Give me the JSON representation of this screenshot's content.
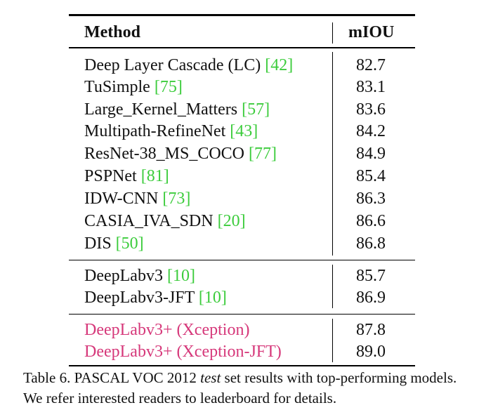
{
  "table": {
    "header": {
      "method": "Method",
      "miou": "mIOU"
    },
    "group1": [
      {
        "method": "Deep Layer Cascade (LC)",
        "ref": "42",
        "miou": "82.7"
      },
      {
        "method": "TuSimple",
        "ref": "75",
        "miou": "83.1"
      },
      {
        "method": "Large_Kernel_Matters",
        "ref": "57",
        "miou": "83.6"
      },
      {
        "method": "Multipath-RefineNet",
        "ref": "43",
        "miou": "84.2"
      },
      {
        "method": "ResNet-38_MS_COCO",
        "ref": "77",
        "miou": "84.9"
      },
      {
        "method": "PSPNet",
        "ref": "81",
        "miou": "85.4"
      },
      {
        "method": "IDW-CNN",
        "ref": "73",
        "miou": "86.3"
      },
      {
        "method": "CASIA_IVA_SDN",
        "ref": "20",
        "miou": "86.6"
      },
      {
        "method": "DIS",
        "ref": "50",
        "miou": "86.8"
      }
    ],
    "group2": [
      {
        "method": "DeepLabv3",
        "ref": "10",
        "miou": "85.7"
      },
      {
        "method": "DeepLabv3-JFT",
        "ref": "10",
        "miou": "86.9"
      }
    ],
    "group3": [
      {
        "method": "DeepLabv3+ (Xception)",
        "miou": "87.8"
      },
      {
        "method": "DeepLabv3+ (Xception-JFT)",
        "miou": "89.0"
      }
    ],
    "colors": {
      "ref": "#3ccc3c",
      "ours": "#d6387a"
    }
  },
  "caption": {
    "prefix": "Table 6. PASCAL VOC 2012 ",
    "italic": "test",
    "suffix": " set results with top-performing models. We refer interested readers to leaderboard for details."
  }
}
